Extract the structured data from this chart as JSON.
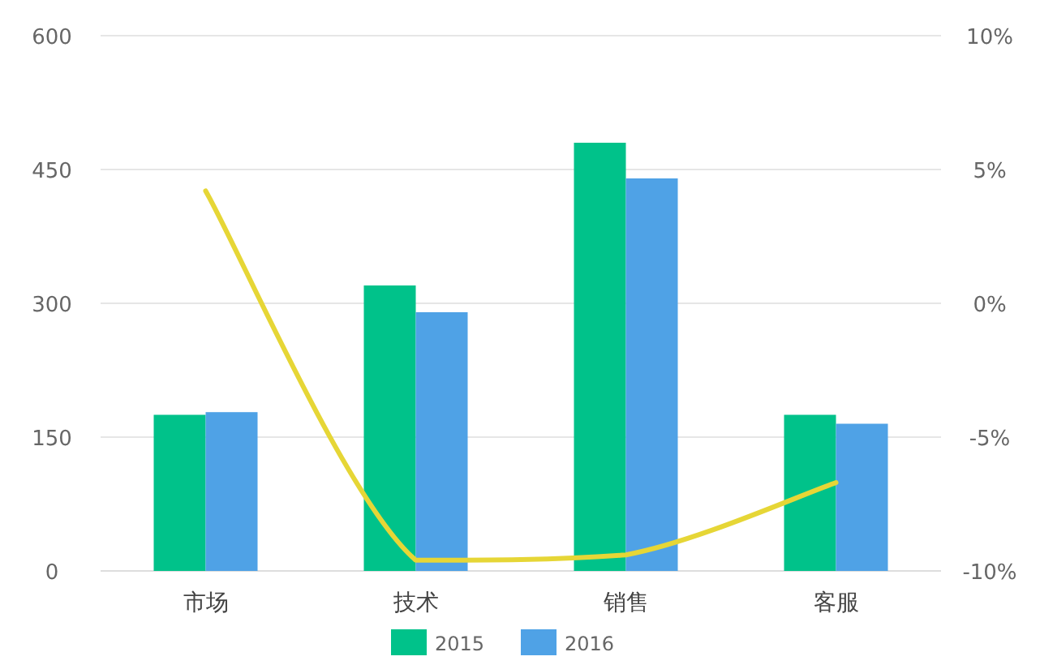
{
  "chart_data": {
    "type": "bar",
    "categories": [
      "市场",
      "技术",
      "销售",
      "客服"
    ],
    "series": [
      {
        "name": "2015",
        "color": "#00c28a",
        "values": [
          175,
          320,
          480,
          175
        ]
      },
      {
        "name": "2016",
        "color": "#4fa2e6",
        "values": [
          178,
          290,
          440,
          165
        ]
      },
      {
        "type": "line",
        "axis": "y2",
        "color": "#e6d636",
        "values": [
          4.2,
          -9.6,
          -9.4,
          -6.7
        ]
      }
    ],
    "ylim": [
      0,
      600
    ],
    "yticks": [
      0,
      150,
      300,
      450,
      600
    ],
    "y2lim": [
      -10,
      10
    ],
    "y2ticks": [
      {
        "value": 10,
        "label": "10%"
      },
      {
        "value": 5,
        "label": "5%"
      },
      {
        "value": 0,
        "label": "0%"
      },
      {
        "value": -5,
        "label": "-5%"
      },
      {
        "value": -10,
        "label": "-10%"
      }
    ],
    "grid": "y",
    "legend": "bottom",
    "marker": "none"
  }
}
